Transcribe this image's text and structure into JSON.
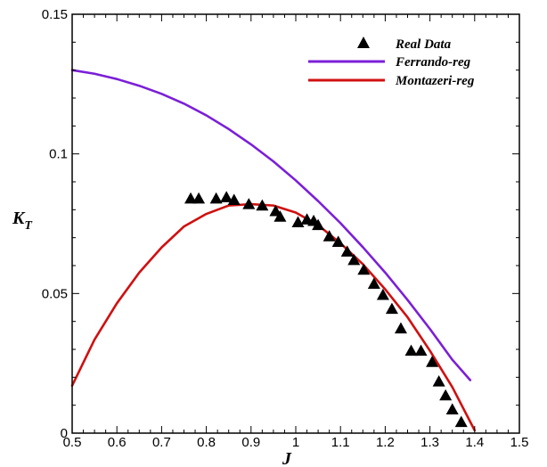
{
  "chart_data": {
    "type": "line",
    "xlabel": "J",
    "ylabel": {
      "main": "K",
      "sub": "T"
    },
    "xlim": [
      0.5,
      1.5
    ],
    "ylim": [
      0,
      0.15
    ],
    "xticks": [
      0.5,
      0.6,
      0.7,
      0.8,
      0.9,
      1,
      1.1,
      1.2,
      1.3,
      1.4,
      1.5
    ],
    "xtick_labels": [
      "0.5",
      "0.6",
      "0.7",
      "0.8",
      "0.9",
      "1",
      "1.1",
      "1.2",
      "1.3",
      "1.4",
      "1.5"
    ],
    "yticks": [
      0,
      0.05,
      0.1,
      0.15
    ],
    "ytick_labels": [
      "0",
      "0.05",
      "0.1",
      "0.15"
    ],
    "grid": false,
    "legend_position": "top-right",
    "series": [
      {
        "name": "Real Data",
        "kind": "scatter",
        "marker": "triangle",
        "color": "#000000",
        "x": [
          0.765,
          0.783,
          0.822,
          0.845,
          0.862,
          0.895,
          0.925,
          0.955,
          0.965,
          1.005,
          1.025,
          1.04,
          1.05,
          1.075,
          1.095,
          1.115,
          1.13,
          1.152,
          1.175,
          1.195,
          1.215,
          1.235,
          1.258,
          1.28,
          1.305,
          1.32,
          1.335,
          1.35,
          1.37
        ],
        "y": [
          0.084,
          0.084,
          0.084,
          0.0845,
          0.0835,
          0.082,
          0.0815,
          0.0795,
          0.0775,
          0.0755,
          0.0765,
          0.076,
          0.0745,
          0.0705,
          0.0685,
          0.065,
          0.062,
          0.0585,
          0.0535,
          0.0495,
          0.0445,
          0.0375,
          0.0295,
          0.0295,
          0.0255,
          0.0185,
          0.0135,
          0.0085,
          0.004
        ]
      },
      {
        "name": "Ferrando-reg",
        "kind": "line",
        "color": "#7b1fd8",
        "x": [
          0.5,
          0.55,
          0.6,
          0.65,
          0.7,
          0.75,
          0.8,
          0.85,
          0.9,
          0.95,
          1.0,
          1.05,
          1.1,
          1.15,
          1.2,
          1.25,
          1.3,
          1.35,
          1.39
        ],
        "y": [
          0.13,
          0.1287,
          0.1268,
          0.1244,
          0.1215,
          0.118,
          0.1138,
          0.1089,
          0.1034,
          0.0973,
          0.0905,
          0.0831,
          0.0752,
          0.0666,
          0.0575,
          0.0477,
          0.0373,
          0.0263,
          0.019
        ]
      },
      {
        "name": "Montazeri-reg",
        "kind": "line",
        "color": "#d01010",
        "x": [
          0.5,
          0.55,
          0.6,
          0.65,
          0.7,
          0.75,
          0.8,
          0.85,
          0.9,
          0.95,
          1.0,
          1.05,
          1.1,
          1.15,
          1.2,
          1.25,
          1.3,
          1.35,
          1.4
        ],
        "y": [
          0.017,
          0.0335,
          0.0465,
          0.0575,
          0.0665,
          0.074,
          0.0785,
          0.0815,
          0.082,
          0.0815,
          0.079,
          0.0745,
          0.068,
          0.0605,
          0.0515,
          0.0415,
          0.0295,
          0.0165,
          0.001
        ]
      }
    ]
  }
}
